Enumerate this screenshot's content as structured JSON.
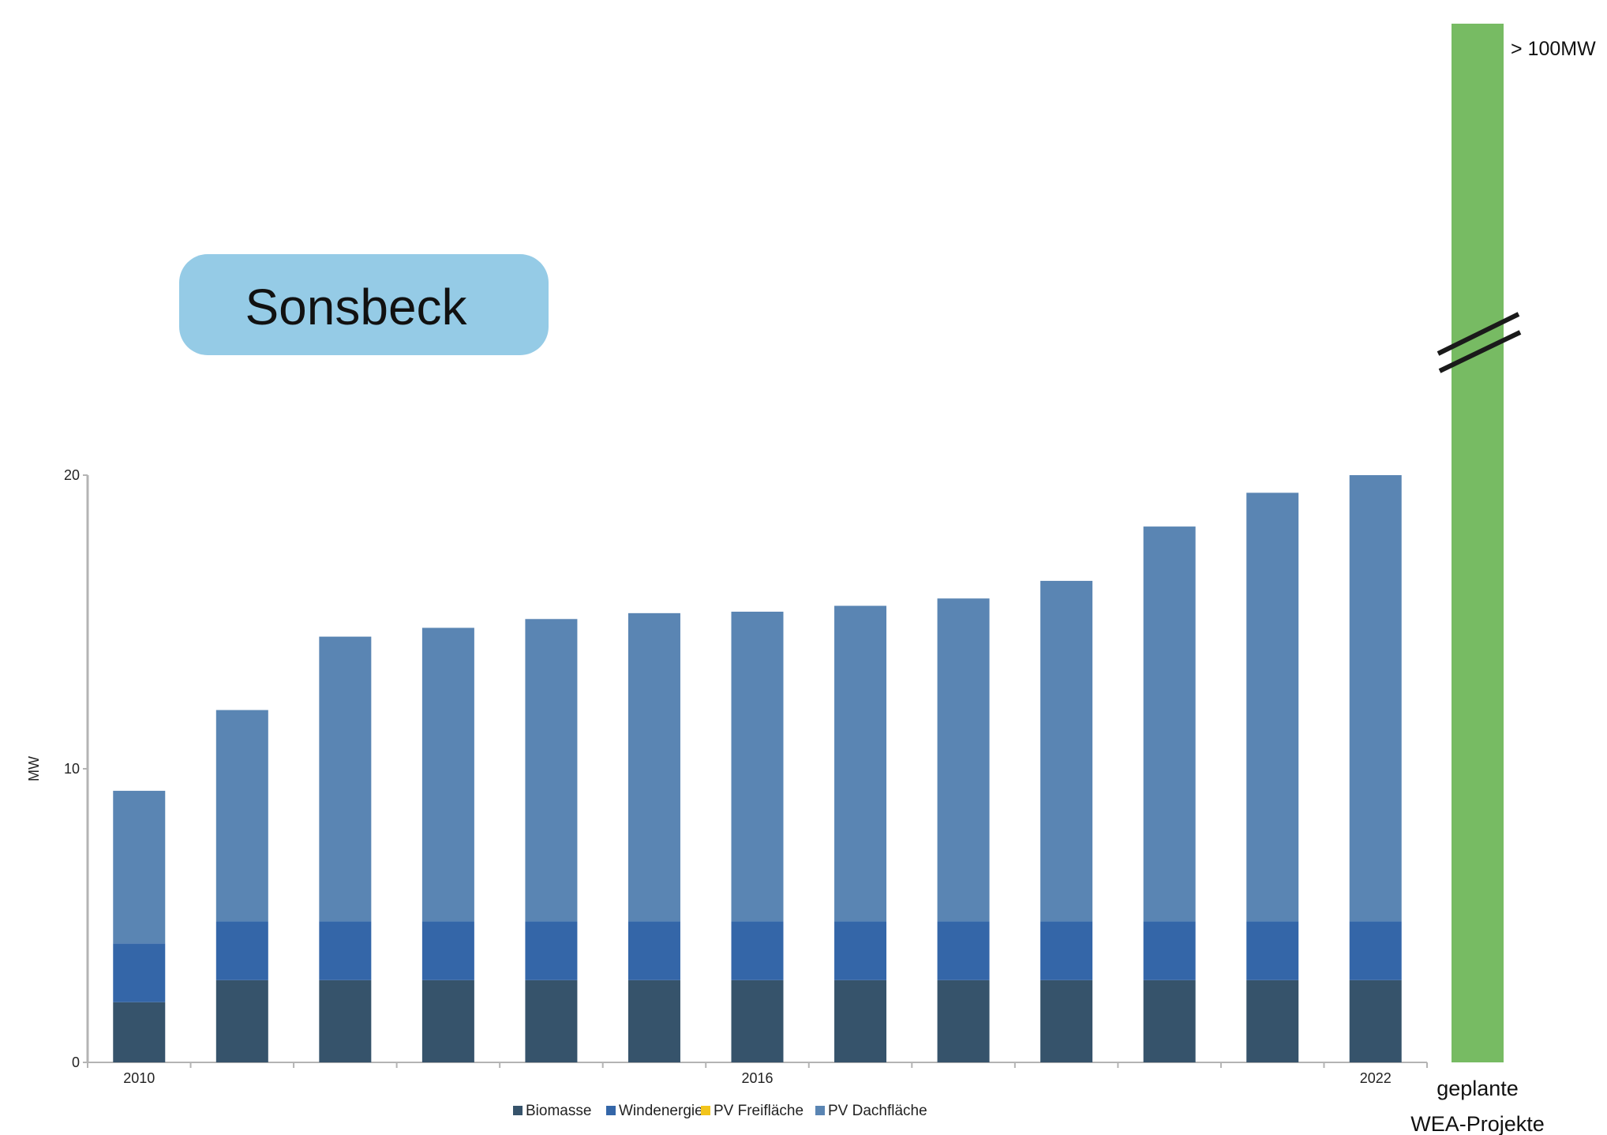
{
  "title": "Sonsbeck",
  "colors": {
    "axis": "#b4b4b4",
    "title_box": "#95cbe6",
    "planned_bar": "#77bb63",
    "break_mark": "#1a1a1a"
  },
  "chart_data": {
    "type": "bar",
    "stacked": true,
    "title": "Sonsbeck",
    "xlabel": "",
    "ylabel": "MW",
    "ylim": [
      0,
      20
    ],
    "yticks": [
      0,
      10,
      20
    ],
    "grid": false,
    "legend_position": "bottom",
    "categories": [
      "2010",
      "2011",
      "2012",
      "2013",
      "2014",
      "2015",
      "2016",
      "2017",
      "2018",
      "2019",
      "2020",
      "2021",
      "2022"
    ],
    "x_tick_labels": [
      "2010",
      "",
      "",
      "",
      "",
      "",
      "2016",
      "",
      "",
      "",
      "",
      "",
      "2022"
    ],
    "series": [
      {
        "name": "Biomasse",
        "color": "#36536b",
        "values": [
          2.05,
          2.8,
          2.8,
          2.8,
          2.8,
          2.8,
          2.8,
          2.8,
          2.8,
          2.8,
          2.8,
          2.8,
          2.8
        ]
      },
      {
        "name": "Windenergie",
        "color": "#3466a8",
        "values": [
          2.0,
          2.0,
          2.0,
          2.0,
          2.0,
          2.0,
          2.0,
          2.0,
          2.0,
          2.0,
          2.0,
          2.0,
          2.0
        ]
      },
      {
        "name": "PV Freifläche",
        "color": "#f2c41b",
        "values": [
          0,
          0,
          0,
          0,
          0,
          0,
          0,
          0,
          0,
          0,
          0,
          0,
          0
        ]
      },
      {
        "name": "PV Dachfläche",
        "color": "#5a85b3",
        "values": [
          5.2,
          7.2,
          9.7,
          10.0,
          10.3,
          10.5,
          10.55,
          10.75,
          11.0,
          11.6,
          13.45,
          14.6,
          15.2
        ]
      }
    ],
    "planned": {
      "label_line1": "geplante",
      "label_line2": "WEA-Projekte",
      "value_label": "> 100MW",
      "value": 100
    }
  }
}
